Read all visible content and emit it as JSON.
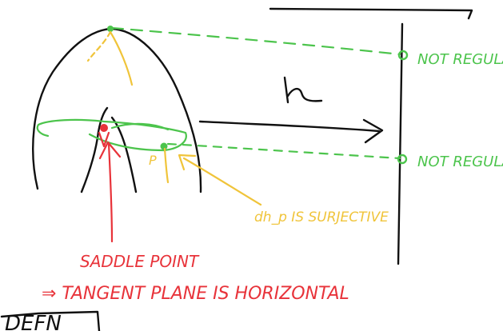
{
  "labels": {
    "h": "h",
    "top_right": "NOT REGULAR",
    "bottom_right": "NOT REGULAR",
    "point": "P",
    "surjective": "dh_p IS SURJECTIVE",
    "saddle_1": "SADDLE POINT",
    "saddle_2": "⇒ TANGENT PLANE IS HORIZONTAL",
    "defn": "DEFN"
  },
  "colors": {
    "ink": "#111111",
    "green": "#4cc44c",
    "yellow": "#f0c43a",
    "red": "#e8333a"
  }
}
